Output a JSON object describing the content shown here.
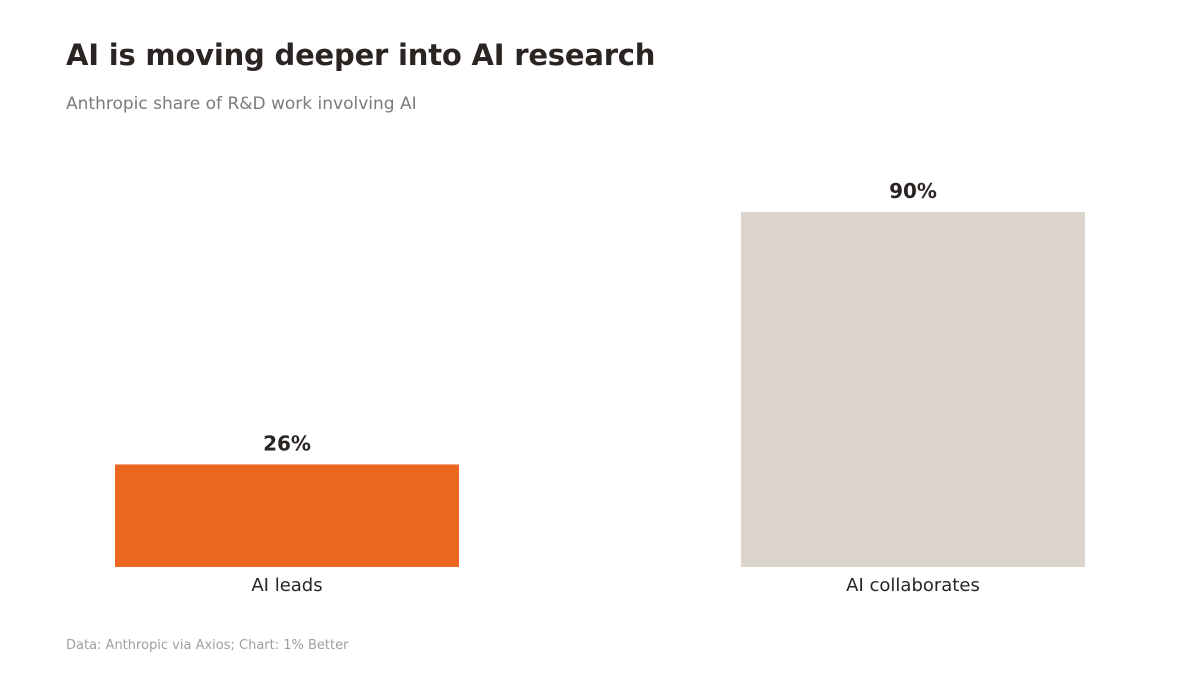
{
  "title": "AI is moving deeper into AI research",
  "subtitle": "Anthropic share of R&D work involving AI",
  "source": "Data: Anthropic via Axios; Chart: 1% Better",
  "colors": {
    "highlight": "#EB6620",
    "neutral": "#DAD4CB",
    "text": "#2A2522"
  },
  "chart_data": {
    "type": "bar",
    "title": "AI is moving deeper into AI research",
    "subtitle": "Anthropic share of R&D work involving AI",
    "categories": [
      "AI leads",
      "AI collaborates"
    ],
    "values": [
      26,
      90
    ],
    "value_labels": [
      "26%",
      "90%"
    ],
    "bar_colors": [
      "#EB6620",
      "#DAD4CB"
    ],
    "unit": "%",
    "xlabel": "",
    "ylabel": "",
    "ylim": [
      0,
      90
    ],
    "grid": false,
    "legend": "none"
  }
}
